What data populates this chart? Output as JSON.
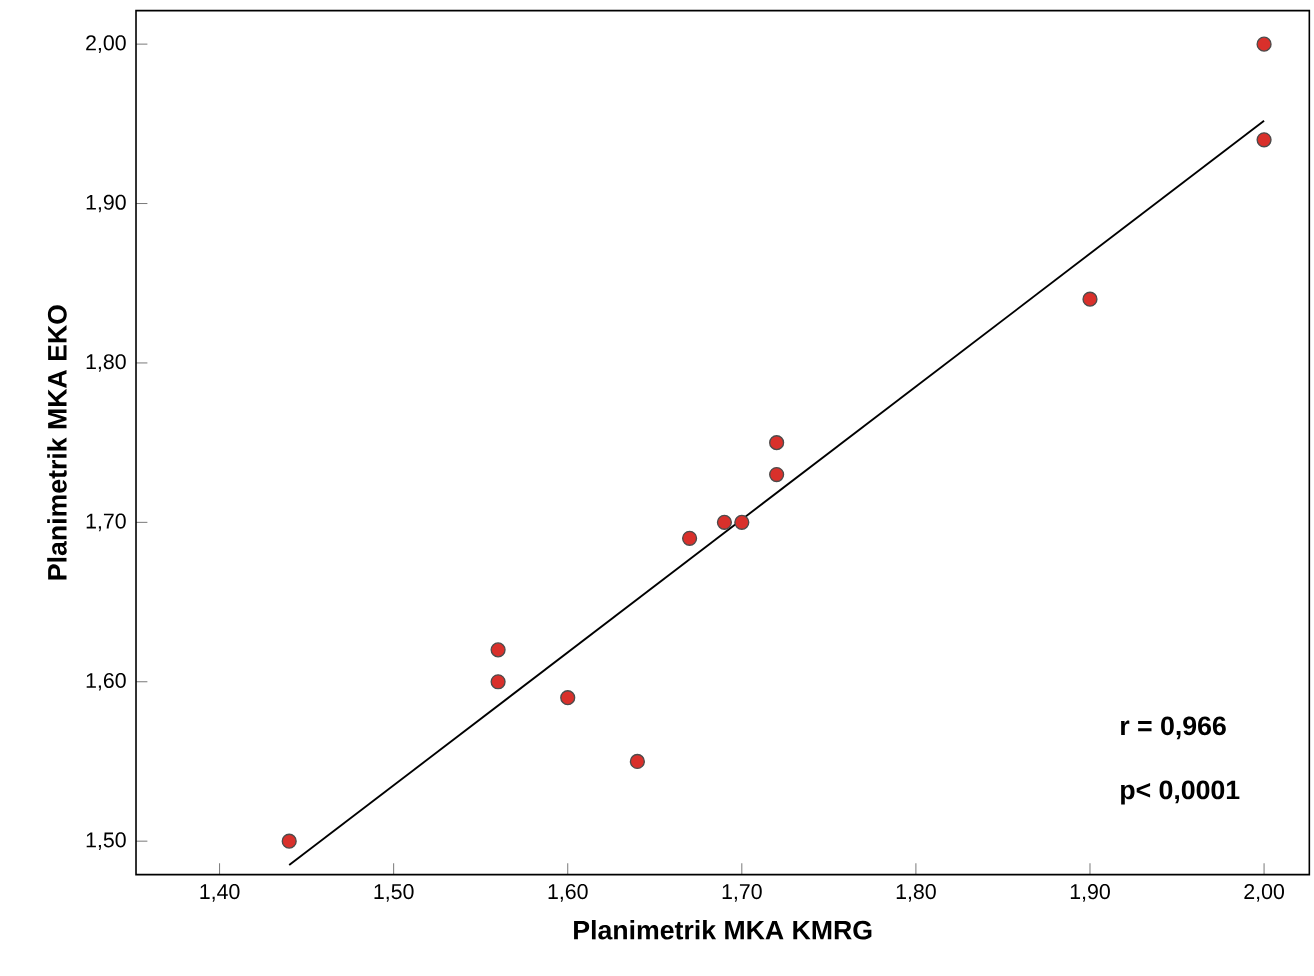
{
  "chart_data": {
    "type": "scatter",
    "xlabel": "Planimetrik MKA KMRG",
    "ylabel": "Planimetrik MKA EKO",
    "xlim": [
      1.352,
      2.026
    ],
    "ylim": [
      1.479,
      2.021
    ],
    "xticks": [
      {
        "value": 1.4,
        "label": "1,40"
      },
      {
        "value": 1.5,
        "label": "1,50"
      },
      {
        "value": 1.6,
        "label": "1,60"
      },
      {
        "value": 1.7,
        "label": "1,70"
      },
      {
        "value": 1.8,
        "label": "1,80"
      },
      {
        "value": 1.9,
        "label": "1,90"
      },
      {
        "value": 2.0,
        "label": "2,00"
      }
    ],
    "yticks": [
      {
        "value": 1.5,
        "label": "1,50"
      },
      {
        "value": 1.6,
        "label": "1,60"
      },
      {
        "value": 1.7,
        "label": "1,70"
      },
      {
        "value": 1.8,
        "label": "1,80"
      },
      {
        "value": 1.9,
        "label": "1,90"
      },
      {
        "value": 2.0,
        "label": "2,00"
      }
    ],
    "grid": false,
    "series": [
      {
        "marker": "circle",
        "color": "#d9302b",
        "x": [
          1.44,
          1.56,
          1.56,
          1.6,
          1.64,
          1.67,
          1.69,
          1.7,
          1.72,
          1.72,
          1.9,
          2.0,
          2.0
        ],
        "values": [
          1.5,
          1.62,
          1.6,
          1.59,
          1.55,
          1.69,
          1.7,
          1.7,
          1.75,
          1.73,
          1.84,
          2.0,
          1.94
        ]
      },
      {
        "type": "line",
        "marker": "none",
        "color": "#000000",
        "x": [
          1.44,
          2.0
        ],
        "values": [
          1.485,
          1.952
        ]
      }
    ],
    "annotations": [
      "r = 0,966",
      "p< 0,0001"
    ]
  }
}
